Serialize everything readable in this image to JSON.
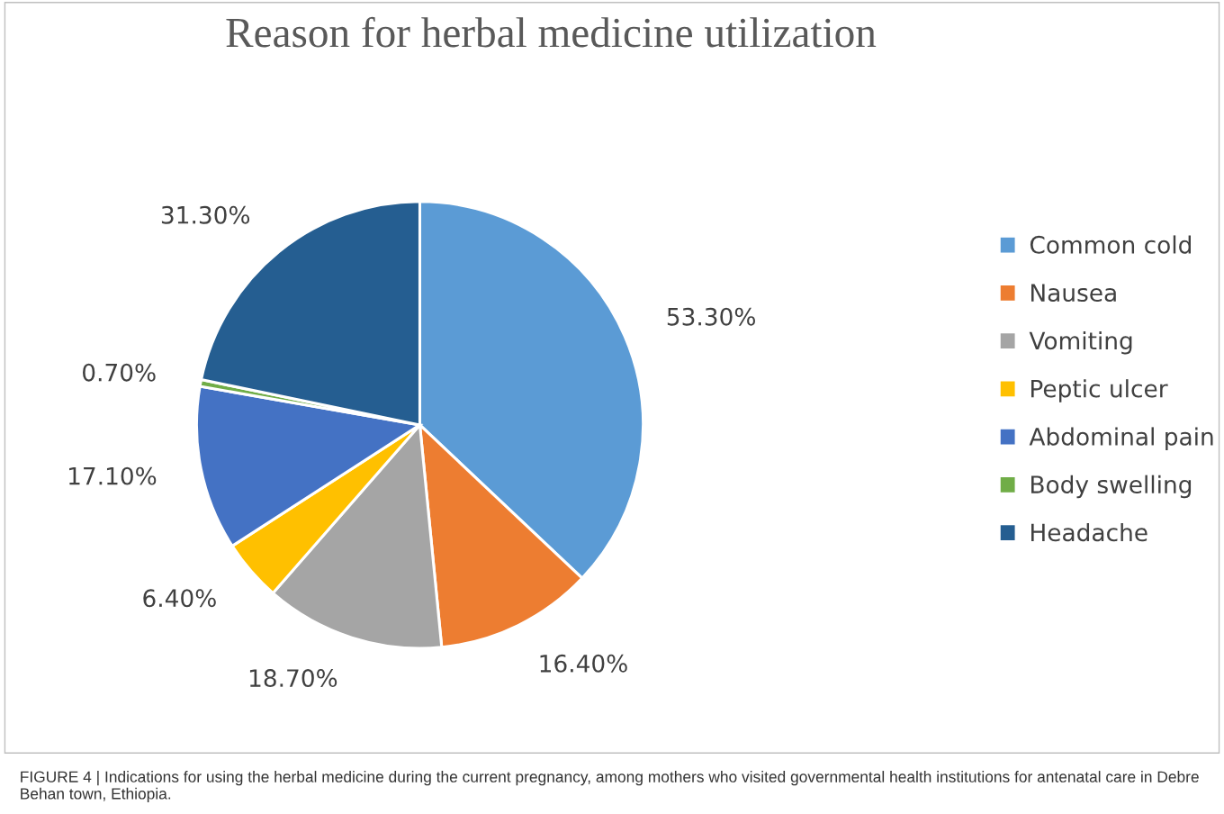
{
  "chart_data": {
    "type": "pie",
    "title": "Reason for herbal medicine utilization",
    "categories": [
      "Common cold",
      "Nausea",
      "Vomiting",
      "Peptic ulcer",
      "Abdominal pain",
      "Body swelling",
      "Headache"
    ],
    "values": [
      53.3,
      16.4,
      18.7,
      6.4,
      17.1,
      0.7,
      31.3
    ],
    "value_labels": [
      "53.30%",
      "16.40%",
      "18.70%",
      "6.40%",
      "17.10%",
      "0.70%",
      "31.30%"
    ],
    "colors": [
      "#5b9bd5",
      "#ed7d31",
      "#a5a5a5",
      "#ffc000",
      "#4472c4",
      "#70ad47",
      "#255e91"
    ],
    "legend": "right",
    "annotations": [
      "FIGURE 4 | Indications for using the herbal medicine during the current pregnancy, among mothers who visited governmental health institutions for antenatal care in Debre Behan town, Ethiopia."
    ]
  }
}
